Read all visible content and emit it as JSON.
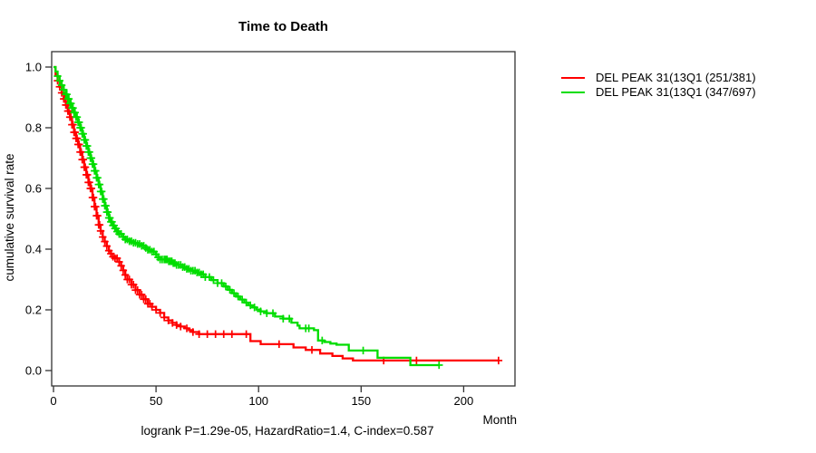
{
  "chart_data": {
    "type": "line",
    "subtype": "kaplan-meier-step-survival",
    "title": "Time to Death",
    "xlabel": "Month",
    "ylabel": "cumulative survival rate",
    "annotation": "logrank P=1.29e-05, HazardRatio=1.4, C-index=0.587",
    "xlim": [
      0,
      225
    ],
    "ylim": [
      0,
      1.0
    ],
    "x_ticks": [
      0,
      50,
      100,
      150,
      200
    ],
    "y_ticks": [
      0.0,
      0.2,
      0.4,
      0.6,
      0.8,
      1.0
    ],
    "grid": false,
    "legend_position": "outside-top-right",
    "series": [
      {
        "name": "DEL PEAK 31(13Q1 (251/381)",
        "color": "#ff0000",
        "steps": [
          [
            0,
            1.0
          ],
          [
            1,
            0.975
          ],
          [
            2,
            0.955
          ],
          [
            3,
            0.935
          ],
          [
            4,
            0.915
          ],
          [
            5,
            0.895
          ],
          [
            6,
            0.875
          ],
          [
            7,
            0.855
          ],
          [
            8,
            0.835
          ],
          [
            9,
            0.81
          ],
          [
            10,
            0.785
          ],
          [
            11,
            0.765
          ],
          [
            12,
            0.745
          ],
          [
            13,
            0.72
          ],
          [
            14,
            0.695
          ],
          [
            15,
            0.67
          ],
          [
            16,
            0.645
          ],
          [
            17,
            0.62
          ],
          [
            18,
            0.6
          ],
          [
            19,
            0.57
          ],
          [
            20,
            0.54
          ],
          [
            21,
            0.51
          ],
          [
            22,
            0.48
          ],
          [
            23,
            0.46
          ],
          [
            24,
            0.44
          ],
          [
            25,
            0.425
          ],
          [
            26,
            0.41
          ],
          [
            27,
            0.395
          ],
          [
            28,
            0.385
          ],
          [
            29,
            0.375
          ],
          [
            30,
            0.37
          ],
          [
            32,
            0.358
          ],
          [
            33,
            0.345
          ],
          [
            34,
            0.33
          ],
          [
            35,
            0.315
          ],
          [
            36,
            0.3
          ],
          [
            38,
            0.283
          ],
          [
            40,
            0.265
          ],
          [
            42,
            0.25
          ],
          [
            44,
            0.235
          ],
          [
            46,
            0.22
          ],
          [
            48,
            0.21
          ],
          [
            50,
            0.2
          ],
          [
            52,
            0.19
          ],
          [
            54,
            0.175
          ],
          [
            56,
            0.165
          ],
          [
            58,
            0.157
          ],
          [
            60,
            0.15
          ],
          [
            62,
            0.145
          ],
          [
            64,
            0.139
          ],
          [
            66,
            0.133
          ],
          [
            68,
            0.127
          ],
          [
            71,
            0.12
          ],
          [
            96,
            0.097
          ],
          [
            101,
            0.087
          ],
          [
            117,
            0.076
          ],
          [
            123,
            0.068
          ],
          [
            130,
            0.056
          ],
          [
            136,
            0.048
          ],
          [
            141,
            0.04
          ],
          [
            146,
            0.033
          ],
          [
            217,
            0.033
          ]
        ],
        "censor_months": [
          2,
          3,
          4,
          5,
          5.5,
          6,
          6.5,
          7,
          7.5,
          8,
          8.5,
          9,
          9.5,
          10,
          10.5,
          11,
          11.5,
          12,
          12.5,
          13,
          13.5,
          14,
          14.5,
          15,
          15.5,
          16,
          16.5,
          17,
          17.5,
          18,
          18.5,
          19,
          19.5,
          20,
          20.5,
          21,
          21.5,
          22,
          22.5,
          23,
          24,
          25,
          26,
          27,
          28,
          29,
          30,
          31,
          32,
          33,
          34,
          35,
          36,
          37,
          38,
          39,
          40,
          41,
          42,
          43,
          44,
          45,
          46,
          47,
          48,
          50,
          52,
          54,
          56,
          58,
          60,
          62,
          65,
          68,
          71,
          75,
          79,
          83,
          87,
          94,
          110,
          126,
          161,
          177,
          217
        ]
      },
      {
        "name": "DEL PEAK 31(13Q1 (347/697)",
        "color": "#00dd00",
        "steps": [
          [
            0,
            1.0
          ],
          [
            1,
            0.985
          ],
          [
            2,
            0.97
          ],
          [
            3,
            0.955
          ],
          [
            4,
            0.94
          ],
          [
            5,
            0.925
          ],
          [
            6,
            0.91
          ],
          [
            7,
            0.895
          ],
          [
            8,
            0.88
          ],
          [
            9,
            0.865
          ],
          [
            10,
            0.85
          ],
          [
            11,
            0.835
          ],
          [
            12,
            0.818
          ],
          [
            13,
            0.8
          ],
          [
            14,
            0.78
          ],
          [
            15,
            0.76
          ],
          [
            16,
            0.74
          ],
          [
            17,
            0.72
          ],
          [
            18,
            0.7
          ],
          [
            19,
            0.68
          ],
          [
            20,
            0.658
          ],
          [
            21,
            0.635
          ],
          [
            22,
            0.613
          ],
          [
            23,
            0.59
          ],
          [
            24,
            0.565
          ],
          [
            25,
            0.543
          ],
          [
            26,
            0.522
          ],
          [
            27,
            0.503
          ],
          [
            28,
            0.49
          ],
          [
            29,
            0.478
          ],
          [
            30,
            0.468
          ],
          [
            31,
            0.458
          ],
          [
            32,
            0.45
          ],
          [
            34,
            0.44
          ],
          [
            35,
            0.432
          ],
          [
            37,
            0.426
          ],
          [
            39,
            0.421
          ],
          [
            41,
            0.417
          ],
          [
            43,
            0.411
          ],
          [
            45,
            0.404
          ],
          [
            46,
            0.398
          ],
          [
            48,
            0.392
          ],
          [
            50,
            0.383
          ],
          [
            51,
            0.373
          ],
          [
            52,
            0.366
          ],
          [
            56,
            0.36
          ],
          [
            58,
            0.354
          ],
          [
            60,
            0.348
          ],
          [
            63,
            0.341
          ],
          [
            65,
            0.335
          ],
          [
            67,
            0.329
          ],
          [
            70,
            0.323
          ],
          [
            72,
            0.317
          ],
          [
            74,
            0.308
          ],
          [
            77,
            0.298
          ],
          [
            80,
            0.288
          ],
          [
            83,
            0.277
          ],
          [
            85,
            0.266
          ],
          [
            87,
            0.255
          ],
          [
            89,
            0.244
          ],
          [
            91,
            0.234
          ],
          [
            93,
            0.224
          ],
          [
            95,
            0.215
          ],
          [
            97,
            0.208
          ],
          [
            99,
            0.201
          ],
          [
            101,
            0.195
          ],
          [
            104,
            0.189
          ],
          [
            108,
            0.178
          ],
          [
            112,
            0.171
          ],
          [
            116,
            0.158
          ],
          [
            119,
            0.148
          ],
          [
            120,
            0.139
          ],
          [
            127,
            0.133
          ],
          [
            129,
            0.099
          ],
          [
            132,
            0.094
          ],
          [
            135,
            0.089
          ],
          [
            138,
            0.085
          ],
          [
            144,
            0.066
          ],
          [
            158,
            0.042
          ],
          [
            174,
            0.018
          ],
          [
            188,
            0.018
          ]
        ],
        "censor_months": [
          2,
          3,
          4,
          5,
          6,
          6.5,
          7,
          7.5,
          8,
          8.5,
          9,
          9.5,
          10,
          10.5,
          11,
          11.5,
          12,
          12.5,
          13,
          13.5,
          14,
          14.5,
          15,
          15.5,
          16,
          16.5,
          17,
          17.5,
          18,
          18.5,
          19,
          19.5,
          20,
          20.5,
          21,
          21.5,
          22,
          22.5,
          23,
          23.5,
          24,
          24.5,
          25,
          25.5,
          26,
          26.5,
          27,
          27.5,
          28,
          28.5,
          29,
          29.5,
          30,
          30.5,
          31,
          31.5,
          32,
          33,
          34,
          35,
          36,
          37,
          38,
          39,
          40,
          41,
          42,
          43,
          44,
          45,
          46,
          47,
          48,
          49,
          50,
          51,
          52,
          53,
          54,
          54.7,
          55.4,
          56.2,
          57,
          57.7,
          58.4,
          59.2,
          60,
          61,
          62,
          63,
          64,
          65,
          66,
          67,
          68,
          69,
          70,
          71,
          72,
          73,
          74,
          76,
          78,
          80,
          82,
          84,
          86,
          88,
          90,
          92,
          94,
          96,
          98,
          101,
          104,
          107,
          112,
          115,
          123,
          124.5,
          131,
          151,
          188
        ]
      }
    ]
  }
}
